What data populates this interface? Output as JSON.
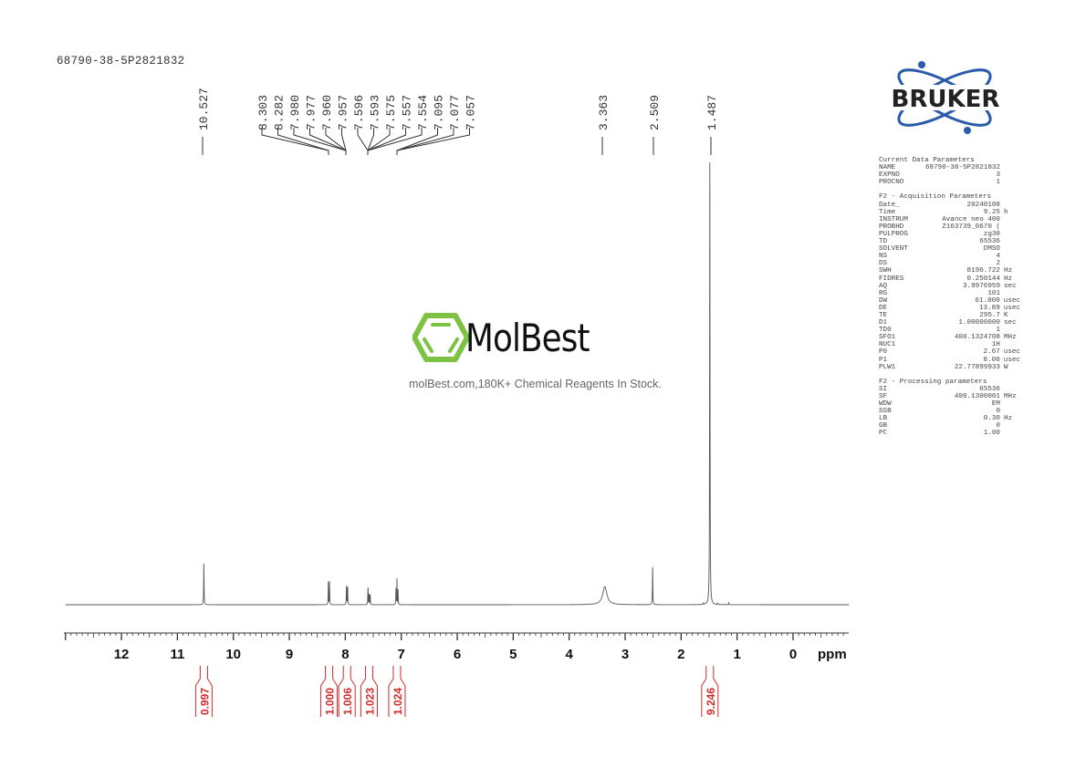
{
  "sample_name": "68790-38-5P2821832",
  "logo": {
    "text": "BRUKER",
    "color": "#2a5caa"
  },
  "watermark": {
    "brand": "MolBest",
    "tagline": "molBest.com,180K+ Chemical Reagents In Stock.",
    "icon": "benzene-hexagon-icon",
    "color": "#7dc242"
  },
  "parameters": {
    "sections": [
      {
        "title": "Current Data Parameters",
        "rows": [
          {
            "name": "NAME",
            "value": "68790-38-5P2821832",
            "unit": ""
          },
          {
            "name": "EXPNO",
            "value": "3",
            "unit": ""
          },
          {
            "name": "PROCNO",
            "value": "1",
            "unit": ""
          }
        ]
      },
      {
        "title": "F2 - Acquisition Parameters",
        "rows": [
          {
            "name": "Date_",
            "value": "20240108",
            "unit": ""
          },
          {
            "name": "Time",
            "value": "9.25",
            "unit": "h"
          },
          {
            "name": "INSTRUM",
            "value": "Avance neo 400",
            "unit": ""
          },
          {
            "name": "PROBHD",
            "value": "Z163739_0670 (",
            "unit": ""
          },
          {
            "name": "PULPROG",
            "value": "zg30",
            "unit": ""
          },
          {
            "name": "TD",
            "value": "65536",
            "unit": ""
          },
          {
            "name": "SOLVENT",
            "value": "DMSO",
            "unit": ""
          },
          {
            "name": "NS",
            "value": "4",
            "unit": ""
          },
          {
            "name": "DS",
            "value": "2",
            "unit": ""
          },
          {
            "name": "SWH",
            "value": "8196.722",
            "unit": "Hz"
          },
          {
            "name": "FIDRES",
            "value": "0.250144",
            "unit": "Hz"
          },
          {
            "name": "AQ",
            "value": "3.9976959",
            "unit": "sec"
          },
          {
            "name": "RG",
            "value": "101",
            "unit": ""
          },
          {
            "name": "DW",
            "value": "61.000",
            "unit": "usec"
          },
          {
            "name": "DE",
            "value": "13.89",
            "unit": "usec"
          },
          {
            "name": "TE",
            "value": "295.7",
            "unit": "K"
          },
          {
            "name": "D1",
            "value": "1.00000000",
            "unit": "sec"
          },
          {
            "name": "TD0",
            "value": "1",
            "unit": ""
          },
          {
            "name": "SFO1",
            "value": "400.1324708",
            "unit": "MHz"
          },
          {
            "name": "NUC1",
            "value": "1H",
            "unit": ""
          },
          {
            "name": "P0",
            "value": "2.67",
            "unit": "usec"
          },
          {
            "name": "P1",
            "value": "8.00",
            "unit": "usec"
          },
          {
            "name": "PLW1",
            "value": "22.77899933",
            "unit": "W"
          }
        ]
      },
      {
        "title": "F2 - Processing parameters",
        "rows": [
          {
            "name": "SI",
            "value": "65536",
            "unit": ""
          },
          {
            "name": "SF",
            "value": "400.1300001",
            "unit": "MHz"
          },
          {
            "name": "WDW",
            "value": "EM",
            "unit": ""
          },
          {
            "name": "SSB",
            "value": "0",
            "unit": ""
          },
          {
            "name": "LB",
            "value": "0.30",
            "unit": "Hz"
          },
          {
            "name": "GB",
            "value": "0",
            "unit": ""
          },
          {
            "name": "PC",
            "value": "1.00",
            "unit": ""
          }
        ]
      }
    ]
  },
  "chart_data": {
    "type": "line",
    "xlabel": "ppm",
    "xlim": [
      13.0,
      -1.0
    ],
    "x_reversed": true,
    "ticks": [
      12,
      11,
      10,
      9,
      8,
      7,
      6,
      5,
      4,
      3,
      2,
      1,
      0
    ],
    "grid": false,
    "line_color": "#555555",
    "integral_color": "#d42a2a",
    "peaks": [
      {
        "ppm": 10.527,
        "height": 9.3,
        "width": 0.004
      },
      {
        "ppm": 8.303,
        "height": 5.2,
        "width": 0.003
      },
      {
        "ppm": 8.282,
        "height": 5.2,
        "width": 0.003
      },
      {
        "ppm": 7.98,
        "height": 2.6,
        "width": 0.003
      },
      {
        "ppm": 7.977,
        "height": 2.6,
        "width": 0.003
      },
      {
        "ppm": 7.96,
        "height": 2.5,
        "width": 0.003
      },
      {
        "ppm": 7.957,
        "height": 2.5,
        "width": 0.003
      },
      {
        "ppm": 7.596,
        "height": 2.4,
        "width": 0.003
      },
      {
        "ppm": 7.593,
        "height": 2.4,
        "width": 0.003
      },
      {
        "ppm": 7.575,
        "height": 2.3,
        "width": 0.003
      },
      {
        "ppm": 7.557,
        "height": 1.4,
        "width": 0.003
      },
      {
        "ppm": 7.554,
        "height": 1.4,
        "width": 0.003
      },
      {
        "ppm": 7.095,
        "height": 3.6,
        "width": 0.003
      },
      {
        "ppm": 7.077,
        "height": 5.8,
        "width": 0.003
      },
      {
        "ppm": 7.057,
        "height": 3.4,
        "width": 0.003
      },
      {
        "ppm": 3.363,
        "height": 4.1,
        "width": 0.045
      },
      {
        "ppm": 2.509,
        "height": 8.5,
        "width": 0.004
      },
      {
        "ppm": 1.6,
        "height": 0.3,
        "width": 0.004
      },
      {
        "ppm": 1.487,
        "height": 100,
        "width": 0.004
      },
      {
        "ppm": 1.35,
        "height": 0.3,
        "width": 0.004
      },
      {
        "ppm": 1.15,
        "height": 0.4,
        "width": 0.004
      }
    ],
    "peak_labels": {
      "single": [
        "10.527",
        "3.363",
        "2.509",
        "1.487"
      ],
      "group": [
        "8.303",
        "8.282",
        "7.980",
        "7.977",
        "7.960",
        "7.957",
        "7.596",
        "7.593",
        "7.575",
        "7.557",
        "7.554",
        "7.095",
        "7.077",
        "7.057"
      ]
    },
    "integrals": [
      {
        "ppm": 10.527,
        "value": "0.997"
      },
      {
        "ppm": 8.29,
        "value": "1.000"
      },
      {
        "ppm": 7.97,
        "value": "1.006"
      },
      {
        "ppm": 7.575,
        "value": "1.023"
      },
      {
        "ppm": 7.077,
        "value": "1.024"
      },
      {
        "ppm": 1.487,
        "value": "9.246"
      }
    ]
  }
}
